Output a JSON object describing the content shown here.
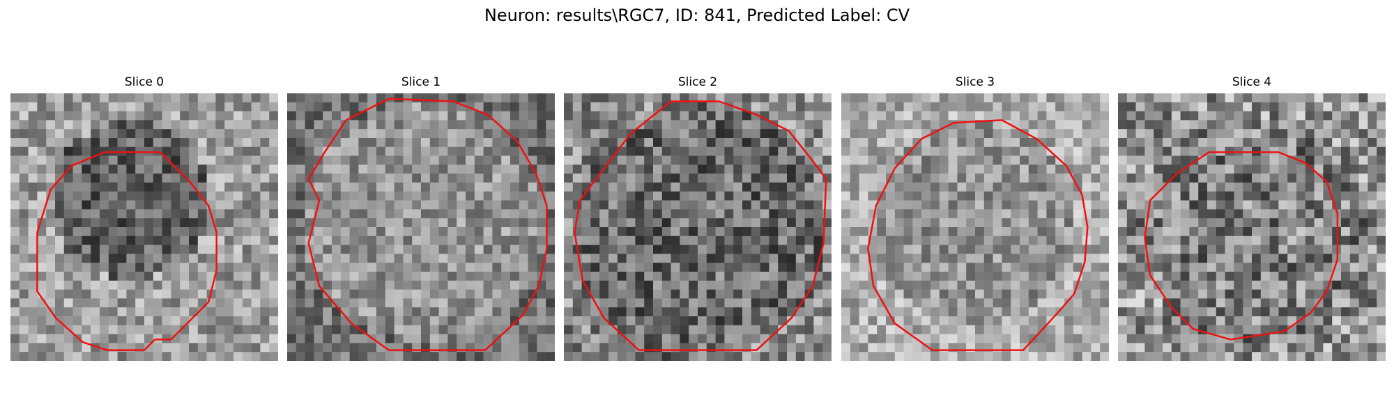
{
  "figure": {
    "title": "Neuron: results\\RGC7, ID: 841, Predicted Label: CV"
  },
  "panels": [
    {
      "title": "Slice 0"
    },
    {
      "title": "Slice 1"
    },
    {
      "title": "Slice 2"
    },
    {
      "title": "Slice 3"
    },
    {
      "title": "Slice 4"
    }
  ],
  "style": {
    "contour_color": "#ee1111",
    "colormap": "gray"
  }
}
